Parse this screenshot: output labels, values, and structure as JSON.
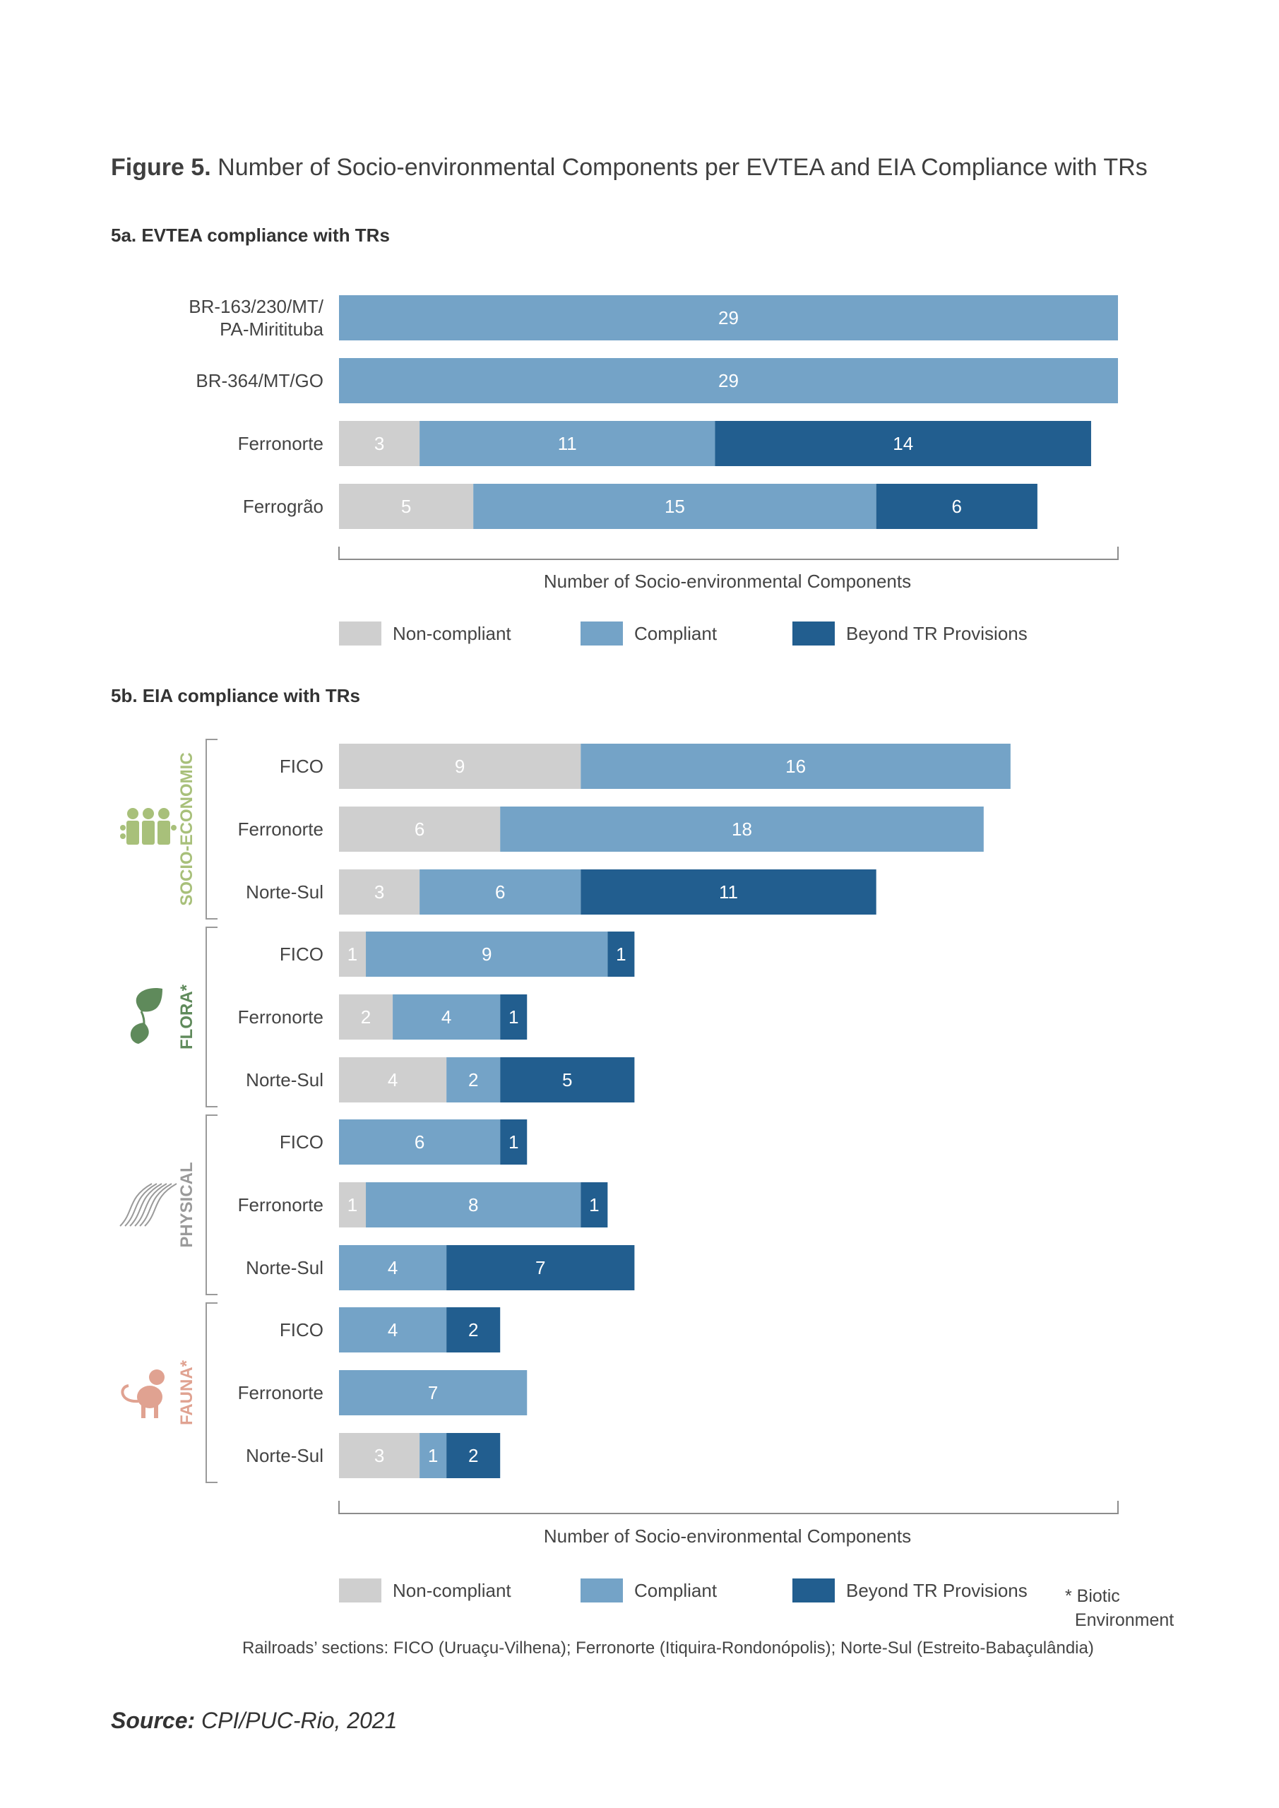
{
  "figure": {
    "title_bold": "Figure 5.",
    "title_rest": " Number of Socio-environmental Components per EVTEA and EIA Compliance with TRs"
  },
  "colors": {
    "non_compliant": "#cfcfcf",
    "compliant": "#74a3c7",
    "beyond": "#225e8f",
    "socio": "#a8c07a",
    "flora": "#5f8a5b",
    "physical": "#9a9a9a",
    "fauna": "#e0a291"
  },
  "legend": {
    "non_compliant": "Non-compliant",
    "compliant": "Compliant",
    "beyond": "Beyond TR Provisions"
  },
  "chart_data": [
    {
      "type": "bar",
      "orientation": "horizontal",
      "stacked": true,
      "title": "5a. EVTEA compliance with TRs",
      "xlabel": "Number of Socio-environmental Components",
      "categories": [
        "BR-163/230/MT/\nPA-Miritituba",
        "BR-364/MT/GO",
        "Ferronorte",
        "Ferrogrão"
      ],
      "series": [
        {
          "name": "Non-compliant",
          "values": [
            0,
            0,
            3,
            5
          ]
        },
        {
          "name": "Compliant",
          "values": [
            29,
            29,
            11,
            15
          ]
        },
        {
          "name": "Beyond TR Provisions",
          "values": [
            0,
            0,
            14,
            6
          ]
        }
      ],
      "xlim": [
        0,
        29
      ],
      "legend": "bottom"
    },
    {
      "type": "bar",
      "orientation": "horizontal",
      "stacked": true,
      "title": "5b. EIA compliance with TRs",
      "xlabel": "Number of Socio-environmental Components",
      "groups": [
        {
          "name": "SOCIO-ECONOMIC",
          "icon": "people-icon",
          "color": "#a8c07a",
          "categories": [
            "FICO",
            "Ferronorte",
            "Norte-Sul"
          ],
          "non_compliant": [
            9,
            6,
            3
          ],
          "compliant": [
            16,
            18,
            6
          ],
          "beyond": [
            0,
            0,
            11
          ]
        },
        {
          "name": "FLORA*",
          "icon": "leaf-icon",
          "color": "#5f8a5b",
          "categories": [
            "FICO",
            "Ferronorte",
            "Norte-Sul"
          ],
          "non_compliant": [
            1,
            2,
            4
          ],
          "compliant": [
            9,
            4,
            2
          ],
          "beyond": [
            1,
            1,
            5
          ]
        },
        {
          "name": "PHYSICAL",
          "icon": "wind-icon",
          "color": "#9a9a9a",
          "categories": [
            "FICO",
            "Ferronorte",
            "Norte-Sul"
          ],
          "non_compliant": [
            0,
            1,
            0
          ],
          "compliant": [
            6,
            8,
            4
          ],
          "beyond": [
            1,
            1,
            7
          ]
        },
        {
          "name": "FAUNA*",
          "icon": "monkey-icon",
          "color": "#e0a291",
          "categories": [
            "FICO",
            "Ferronorte",
            "Norte-Sul"
          ],
          "non_compliant": [
            0,
            0,
            3
          ],
          "compliant": [
            4,
            7,
            1
          ],
          "beyond": [
            2,
            0,
            2
          ]
        }
      ],
      "xlim": [
        0,
        29
      ],
      "legend": "bottom"
    }
  ],
  "biotic_note": "* Biotic\n  Environment",
  "railroads_note": "Railroads’ sections: FICO (Uruaçu-Vilhena); Ferronorte (Itiquira-Rondonópolis); Norte-Sul (Estreito-Babaçulândia)",
  "source": {
    "bold": "Source:",
    "rest": " CPI/PUC-Rio, 2021"
  }
}
